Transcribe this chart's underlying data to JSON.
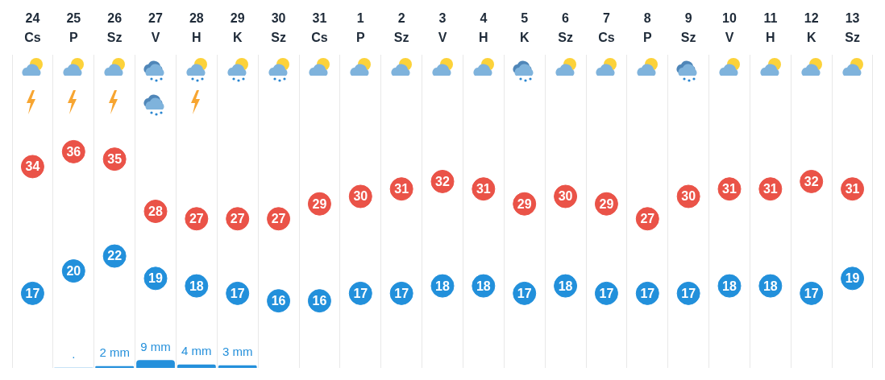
{
  "chart_data": {
    "type": "scatter",
    "categories": [
      "24 Cs",
      "25 P",
      "26 Sz",
      "27 V",
      "28 H",
      "29 K",
      "30 Sz",
      "31 Cs",
      "1 P",
      "2 Sz",
      "3 V",
      "4 H",
      "5 K",
      "6 Sz",
      "7 Cs",
      "8 P",
      "9 Sz",
      "10 V",
      "11 H",
      "12 K",
      "13 Sz"
    ],
    "marker": "circle",
    "data_labels": true,
    "grid": "x",
    "tick_labels": "x",
    "ylim": [
      7,
      49
    ],
    "y2lim": [
      0,
      360
    ],
    "series": [
      {
        "color": "#ea5348",
        "values": [
          34,
          36,
          35,
          28,
          27,
          27,
          27,
          29,
          30,
          31,
          32,
          31,
          29,
          30,
          29,
          27,
          30,
          31,
          31,
          32,
          31
        ]
      },
      {
        "color": "#2290db",
        "values": [
          17,
          20,
          22,
          19,
          18,
          17,
          16,
          16,
          17,
          17,
          18,
          18,
          17,
          18,
          17,
          17,
          17,
          18,
          18,
          17,
          19
        ]
      },
      {
        "type": "bar",
        "axis": "y2",
        "color": "#2590db",
        "values": [
          null,
          0.2,
          2,
          9,
          4,
          3,
          null,
          null,
          null,
          null,
          null,
          null,
          null,
          null,
          null,
          null,
          null,
          null,
          null,
          null,
          null
        ],
        "value_labels": [
          null,
          ".",
          "2 mm",
          "9 mm",
          "4 mm",
          "3 mm",
          null,
          null,
          null,
          null,
          null,
          null,
          null,
          null,
          null,
          null,
          null,
          null,
          null,
          null,
          null
        ]
      }
    ]
  }
}
